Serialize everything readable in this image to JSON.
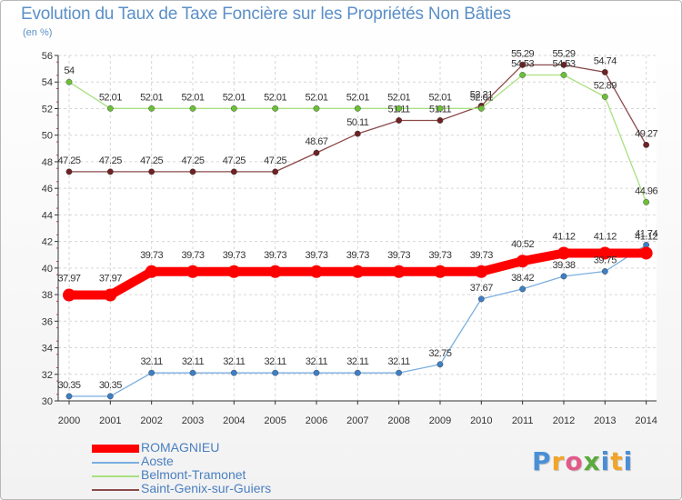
{
  "title": "Evolution du Taux de Taxe Foncière sur les Propriétés Non Bâties",
  "unit_label": "(en %)",
  "logo": {
    "text": "Proxiti",
    "colors": [
      "#4a8fd6",
      "#f0a52a",
      "#e25a8a",
      "#5aaa3c",
      "#4a8fd6",
      "#f0a52a",
      "#4a8fd6"
    ]
  },
  "chart_data": {
    "type": "line",
    "title": "Evolution du Taux de Taxe Foncière sur les Propriétés Non Bâties",
    "ylabel": "(en %)",
    "xlabel": "",
    "ylim": [
      30,
      56
    ],
    "yticks": [
      30,
      32,
      34,
      36,
      38,
      40,
      42,
      44,
      46,
      48,
      50,
      52,
      54,
      56
    ],
    "categories": [
      "2000",
      "2001",
      "2002",
      "2003",
      "2004",
      "2005",
      "2006",
      "2007",
      "2008",
      "2009",
      "2010",
      "2011",
      "2012",
      "2013",
      "2014"
    ],
    "grid": true,
    "series": [
      {
        "name": "ROMAGNIEU",
        "color": "#ff0000",
        "marker_color": "#ff0000",
        "bold": true,
        "values": [
          37.97,
          37.97,
          39.73,
          39.73,
          39.73,
          39.73,
          39.73,
          39.73,
          39.73,
          39.73,
          39.73,
          40.52,
          41.12,
          41.12,
          41.12
        ],
        "labels": [
          "37.97",
          "37.97",
          "39.73",
          "39.73",
          "39.73",
          "39.73",
          "39.73",
          "39.73",
          "39.73",
          "39.73",
          "39.73",
          "40.52",
          "41.12",
          "41.12",
          "41.12"
        ]
      },
      {
        "name": "Aoste",
        "color": "#7aaee0",
        "marker_color": "#3d7fc4",
        "bold": false,
        "values": [
          30.35,
          30.35,
          32.11,
          32.11,
          32.11,
          32.11,
          32.11,
          32.11,
          32.11,
          32.75,
          37.67,
          38.42,
          39.38,
          39.75,
          41.74
        ],
        "labels": [
          "30.35",
          "30.35",
          "32.11",
          "32.11",
          "32.11",
          "32.11",
          "32.11",
          "32.11",
          "32.11",
          "32.75",
          "37.67",
          "38.42",
          "39.38",
          "39.75",
          "41.74"
        ]
      },
      {
        "name": "Belmont-Tramonet",
        "color": "#a8e080",
        "marker_color": "#6cc038",
        "bold": false,
        "values": [
          54,
          52.01,
          52.01,
          52.01,
          52.01,
          52.01,
          52.01,
          52.01,
          52.01,
          52.01,
          52.01,
          54.53,
          54.53,
          52.89,
          44.96
        ],
        "labels": [
          "54",
          "52.01",
          "52.01",
          "52.01",
          "52.01",
          "52.01",
          "52.01",
          "52.01",
          "52.01",
          "52.01",
          "52.01",
          "54.53",
          "54.53",
          "52.89",
          "44.96"
        ]
      },
      {
        "name": "Saint-Genix-sur-Guiers",
        "color": "#8b4a4a",
        "marker_color": "#6e2222",
        "bold": false,
        "values": [
          47.25,
          47.25,
          47.25,
          47.25,
          47.25,
          47.25,
          48.67,
          50.11,
          51.11,
          51.11,
          52.21,
          55.29,
          55.29,
          54.74,
          49.27
        ],
        "labels": [
          "47.25",
          "47.25",
          "47.25",
          "47.25",
          "47.25",
          "47.25",
          "48.67",
          "50.11",
          "51.11",
          "51.11",
          "52.21",
          "55.29",
          "55.29",
          "54.74",
          "49.27"
        ]
      }
    ]
  }
}
